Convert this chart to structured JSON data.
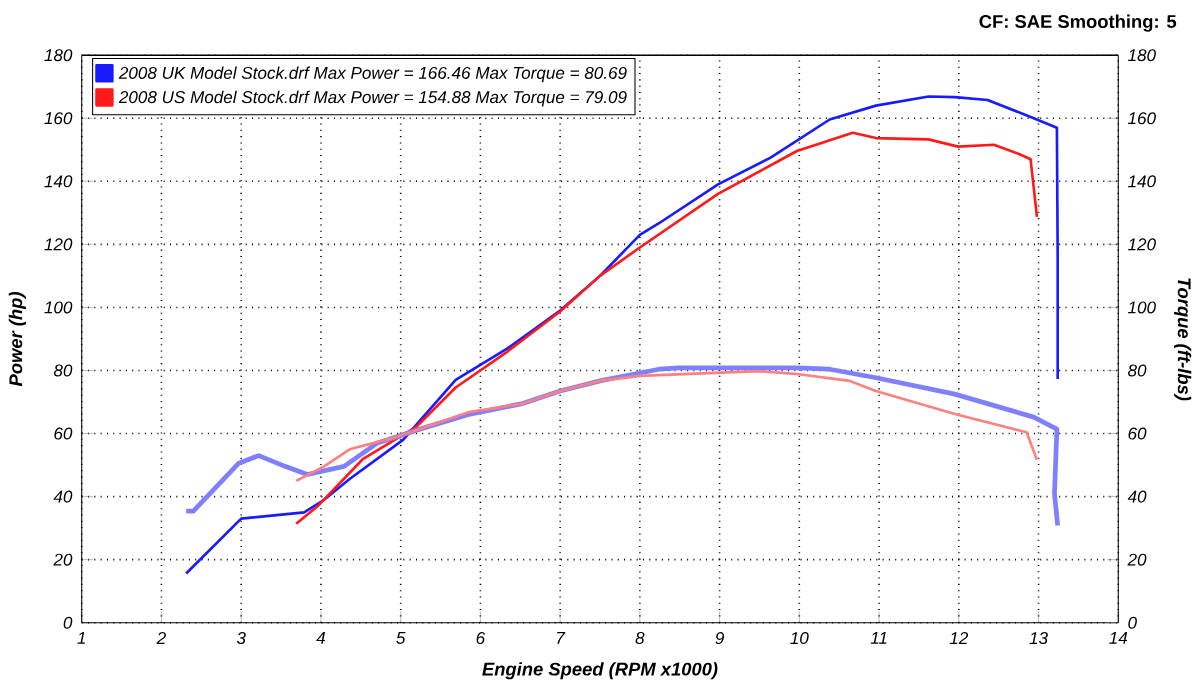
{
  "chart_data": {
    "type": "line",
    "xlabel": "Engine Speed (RPM x1000)",
    "ylabel": "Power (hp)",
    "y2label": "Torque (ft-lbs)",
    "annotations": [
      "CF: SAE  Smoothing: 5"
    ],
    "xlim": [
      1,
      14
    ],
    "xticks": [
      1,
      2,
      3,
      4,
      5,
      6,
      7,
      8,
      9,
      10,
      11,
      12,
      13,
      14
    ],
    "ylim": [
      0,
      180
    ],
    "yticks": [
      0,
      20,
      40,
      60,
      80,
      100,
      120,
      140,
      160,
      180
    ],
    "y2lim": [
      0,
      180
    ],
    "y2ticks": [
      0,
      20,
      40,
      60,
      80,
      100,
      120,
      140,
      160,
      180
    ],
    "grid": true,
    "legend": "top left",
    "marker": "none",
    "line_style": "solid",
    "series": [
      {
        "name": "2008 UK Model Stock.drf Max Power = 166.46  Max Torque = 80.69",
        "color": "#1a1aff",
        "x": [
          2.31,
          3.0,
          3.79,
          4.04,
          4.36,
          5.03,
          5.69,
          6.34,
          7.0,
          7.5,
          8.0,
          8.24,
          8.98,
          9.64,
          10.38,
          10.96,
          11.62,
          11.95,
          12.36,
          12.94,
          13.23,
          13.24,
          13.24
        ],
        "values": [
          15.6,
          33,
          35,
          39,
          45.6,
          58,
          77,
          87,
          99,
          110,
          123,
          126.7,
          139,
          147.5,
          159.6,
          164,
          166.9,
          166.7,
          165.8,
          160,
          157,
          116,
          77.3
        ]
      },
      {
        "name": "2008 US Model Stock.drf Max Power = 154.88  Max Torque = 79.09",
        "color": "#ff1a1a",
        "x": [
          3.69,
          3.96,
          4.53,
          5.19,
          5.69,
          6.34,
          7.0,
          7.5,
          8.0,
          8.98,
          9.97,
          10.67,
          10.96,
          11.62,
          11.99,
          12.44,
          12.77,
          12.9,
          12.98
        ],
        "values": [
          31.4,
          37,
          52,
          62,
          74.6,
          86,
          98.7,
          110,
          119,
          136,
          149.6,
          155.4,
          153.7,
          153.3,
          151,
          151.6,
          148.5,
          147,
          128.7
        ]
      },
      {
        "color": "#8080ff",
        "axis": "y2",
        "x": [
          2.31,
          2.4,
          2.97,
          3.22,
          3.55,
          3.83,
          4.29,
          4.7,
          5.19,
          5.84,
          6.51,
          7.0,
          7.5,
          8.24,
          8.49,
          9.97,
          10.38,
          10.96,
          11.95,
          12.94,
          13.23,
          13.2,
          13.24
        ],
        "values": [
          35.4,
          35.4,
          50.6,
          53,
          49.6,
          47,
          49.6,
          56.9,
          61,
          66,
          69.4,
          73.5,
          76.7,
          80.4,
          80.8,
          80.8,
          80.4,
          77.7,
          72.5,
          65.2,
          61.4,
          41,
          30.8
        ]
      },
      {
        "color": "#ff8080",
        "axis": "y2",
        "x": [
          3.69,
          4.04,
          4.36,
          4.86,
          5.19,
          5.84,
          6.51,
          7.0,
          7.5,
          8.0,
          9.48,
          9.97,
          10.63,
          10.96,
          11.95,
          12.85,
          12.98
        ],
        "values": [
          45,
          49.6,
          55,
          58.3,
          61,
          66.7,
          69.4,
          73.5,
          76.7,
          78.3,
          79.8,
          78.9,
          76.7,
          73.5,
          66.2,
          60.4,
          51.7
        ]
      }
    ]
  }
}
